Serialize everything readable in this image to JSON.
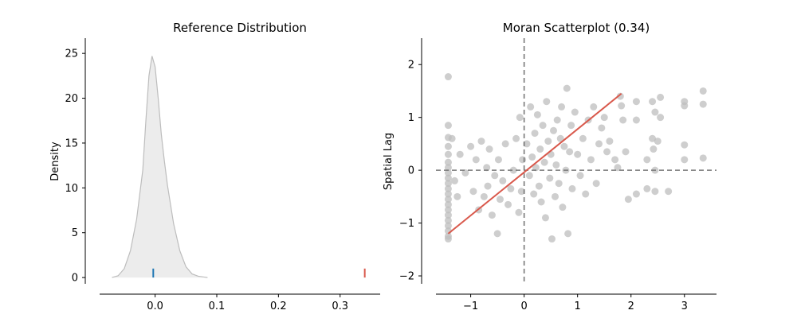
{
  "colors": {
    "kde_fill": "#ececec",
    "kde_line": "#bdbdbd",
    "expected_marker": "#1f77b4",
    "observed_marker": "#d9594c",
    "scatter_point": "#bdbdbd",
    "fit_line": "#d9594c",
    "reference_line": "#777777"
  },
  "chart_data": [
    {
      "type": "area",
      "title": "Reference Distribution",
      "xlabel": "",
      "ylabel": "Density",
      "xlim": [
        -0.09,
        0.365
      ],
      "ylim": [
        -0.7,
        26.7
      ],
      "xticks": [
        0.0,
        0.1,
        0.2,
        0.3
      ],
      "xtick_labels": [
        "0.0",
        "0.1",
        "0.2",
        "0.3"
      ],
      "yticks": [
        0,
        5,
        10,
        15,
        20,
        25
      ],
      "ytick_labels": [
        "0",
        "5",
        "10",
        "15",
        "20",
        "25"
      ],
      "grid": false,
      "series": [
        {
          "x": [
            -0.07,
            -0.06,
            -0.05,
            -0.04,
            -0.03,
            -0.02,
            -0.015,
            -0.01,
            -0.005,
            0.0,
            0.005,
            0.01,
            0.015,
            0.02,
            0.03,
            0.04,
            0.05,
            0.06,
            0.07,
            0.08,
            0.085
          ],
          "y": [
            0.0,
            0.2,
            1.0,
            3.0,
            6.5,
            12.0,
            17.5,
            22.5,
            24.7,
            23.5,
            20.0,
            16.0,
            13.0,
            10.3,
            6.0,
            3.0,
            1.2,
            0.4,
            0.15,
            0.05,
            0.0
          ]
        }
      ],
      "markers": [
        {
          "x": -0.003,
          "y_range": [
            0,
            1
          ],
          "color": "#1f77b4"
        },
        {
          "x": 0.34,
          "y_range": [
            0,
            1
          ],
          "color": "#d9594c"
        }
      ]
    },
    {
      "type": "scatter",
      "title": "Moran Scatterplot (0.34)",
      "xlabel": "",
      "ylabel": "Spatial Lag",
      "xlim": [
        -1.65,
        3.6
      ],
      "ylim": [
        -2.15,
        2.5
      ],
      "xticks": [
        -1,
        0,
        1,
        2,
        3
      ],
      "xtick_labels": [
        "−1",
        "0",
        "1",
        "2",
        "3"
      ],
      "yticks": [
        -2,
        -1,
        0,
        1,
        2
      ],
      "ytick_labels": [
        "−2",
        "−1",
        "0",
        "1",
        "2"
      ],
      "grid": false,
      "reference_lines": {
        "x": 0,
        "y": 0
      },
      "fit_line": {
        "x": [
          -1.42,
          1.82
        ],
        "y": [
          -1.2,
          1.45
        ]
      },
      "points": [
        [
          -1.42,
          1.77
        ],
        [
          -1.42,
          0.85
        ],
        [
          -1.42,
          0.62
        ],
        [
          -1.42,
          0.45
        ],
        [
          -1.42,
          0.3
        ],
        [
          -1.42,
          0.15
        ],
        [
          -1.42,
          0.05
        ],
        [
          -1.42,
          -0.05
        ],
        [
          -1.42,
          -0.15
        ],
        [
          -1.42,
          -0.25
        ],
        [
          -1.42,
          -0.35
        ],
        [
          -1.42,
          -0.45
        ],
        [
          -1.42,
          -0.55
        ],
        [
          -1.42,
          -0.65
        ],
        [
          -1.42,
          -0.75
        ],
        [
          -1.42,
          -0.85
        ],
        [
          -1.42,
          -0.95
        ],
        [
          -1.42,
          -1.05
        ],
        [
          -1.42,
          -1.15
        ],
        [
          -1.42,
          -1.25
        ],
        [
          -1.42,
          -1.3
        ],
        [
          -1.35,
          0.6
        ],
        [
          -1.3,
          -0.2
        ],
        [
          -1.25,
          -0.5
        ],
        [
          -1.2,
          0.3
        ],
        [
          -1.1,
          -0.05
        ],
        [
          -1.0,
          0.45
        ],
        [
          -0.95,
          -0.4
        ],
        [
          -0.9,
          0.2
        ],
        [
          -0.85,
          -0.75
        ],
        [
          -0.8,
          0.55
        ],
        [
          -0.75,
          -0.5
        ],
        [
          -0.7,
          0.05
        ],
        [
          -0.68,
          -0.3
        ],
        [
          -0.65,
          0.4
        ],
        [
          -0.6,
          -0.85
        ],
        [
          -0.55,
          -0.1
        ],
        [
          -0.5,
          -1.2
        ],
        [
          -0.48,
          0.2
        ],
        [
          -0.45,
          -0.55
        ],
        [
          -0.4,
          -0.2
        ],
        [
          -0.35,
          0.5
        ],
        [
          -0.3,
          -0.65
        ],
        [
          -0.25,
          -0.35
        ],
        [
          -0.2,
          0.0
        ],
        [
          -0.15,
          0.6
        ],
        [
          -0.1,
          -0.8
        ],
        [
          -0.08,
          1.0
        ],
        [
          -0.05,
          -0.4
        ],
        [
          -0.03,
          0.2
        ],
        [
          0.05,
          0.5
        ],
        [
          0.1,
          -0.1
        ],
        [
          0.12,
          1.2
        ],
        [
          0.15,
          0.25
        ],
        [
          0.18,
          -0.45
        ],
        [
          0.2,
          0.7
        ],
        [
          0.22,
          0.05
        ],
        [
          0.25,
          1.05
        ],
        [
          0.28,
          -0.3
        ],
        [
          0.3,
          0.4
        ],
        [
          0.32,
          -0.6
        ],
        [
          0.35,
          0.85
        ],
        [
          0.38,
          0.15
        ],
        [
          0.4,
          -0.9
        ],
        [
          0.42,
          1.3
        ],
        [
          0.45,
          0.55
        ],
        [
          0.48,
          -0.15
        ],
        [
          0.5,
          0.3
        ],
        [
          0.52,
          -1.3
        ],
        [
          0.55,
          0.75
        ],
        [
          0.58,
          -0.5
        ],
        [
          0.6,
          0.1
        ],
        [
          0.62,
          0.95
        ],
        [
          0.65,
          -0.25
        ],
        [
          0.68,
          0.6
        ],
        [
          0.7,
          1.2
        ],
        [
          0.72,
          -0.7
        ],
        [
          0.75,
          0.45
        ],
        [
          0.78,
          0.0
        ],
        [
          0.8,
          1.55
        ],
        [
          0.82,
          -1.2
        ],
        [
          0.85,
          0.35
        ],
        [
          0.88,
          0.85
        ],
        [
          0.9,
          -0.35
        ],
        [
          0.95,
          1.1
        ],
        [
          1.0,
          0.3
        ],
        [
          1.05,
          -0.1
        ],
        [
          1.1,
          0.6
        ],
        [
          1.15,
          -0.45
        ],
        [
          1.2,
          0.95
        ],
        [
          1.25,
          0.2
        ],
        [
          1.3,
          1.2
        ],
        [
          1.35,
          -0.25
        ],
        [
          1.4,
          0.5
        ],
        [
          1.45,
          0.8
        ],
        [
          1.5,
          1.0
        ],
        [
          1.55,
          0.35
        ],
        [
          1.6,
          0.55
        ],
        [
          1.7,
          0.2
        ],
        [
          1.75,
          0.05
        ],
        [
          1.8,
          1.4
        ],
        [
          1.82,
          1.22
        ],
        [
          1.85,
          0.95
        ],
        [
          1.9,
          0.35
        ],
        [
          1.95,
          -0.55
        ],
        [
          2.1,
          1.3
        ],
        [
          2.1,
          0.95
        ],
        [
          2.1,
          -0.45
        ],
        [
          2.3,
          0.2
        ],
        [
          2.3,
          -0.35
        ],
        [
          2.4,
          1.3
        ],
        [
          2.4,
          0.6
        ],
        [
          2.42,
          0.4
        ],
        [
          2.45,
          0.0
        ],
        [
          2.45,
          -0.4
        ],
        [
          2.45,
          1.1
        ],
        [
          2.5,
          0.55
        ],
        [
          2.55,
          1.38
        ],
        [
          2.55,
          1.0
        ],
        [
          2.7,
          -0.4
        ],
        [
          3.0,
          1.3
        ],
        [
          3.0,
          1.22
        ],
        [
          3.0,
          0.48
        ],
        [
          3.0,
          0.2
        ],
        [
          3.35,
          1.5
        ],
        [
          3.35,
          1.25
        ],
        [
          3.35,
          0.23
        ]
      ]
    }
  ]
}
